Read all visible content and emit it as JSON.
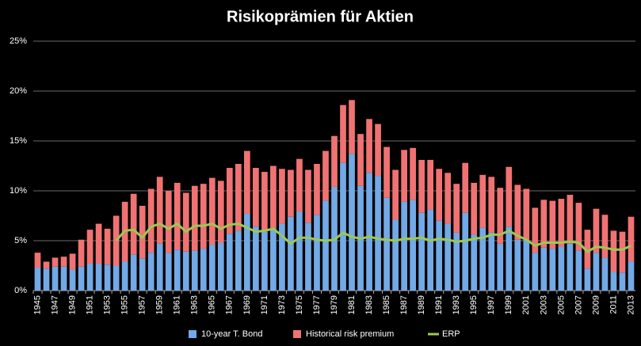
{
  "chart_data": {
    "type": "stacked_bar_line",
    "title": "Risikoprämien für Aktien",
    "categories": [
      "1945",
      null,
      "1947",
      null,
      "1949",
      null,
      "1951",
      null,
      "1953",
      null,
      "1955",
      null,
      "1957",
      null,
      "1959",
      null,
      "1961",
      null,
      "1963",
      null,
      "1965",
      null,
      "1967",
      null,
      "1969",
      null,
      "1971",
      null,
      "1973",
      null,
      "1975",
      null,
      "1977",
      null,
      "1979",
      null,
      "1981",
      null,
      "1983",
      null,
      "1985",
      null,
      "1987",
      null,
      "1989",
      null,
      "1991",
      null,
      "1993",
      null,
      "1995",
      null,
      "1997",
      null,
      "1999",
      null,
      "2001",
      null,
      "2003",
      null,
      "2005",
      null,
      "2007",
      null,
      "2009",
      null,
      "2011",
      null,
      "2013"
    ],
    "series": [
      {
        "name": "10-year T. Bond",
        "color": "#72a9e6",
        "kind": "bar",
        "values": [
          2.3,
          2.2,
          2.4,
          2.4,
          2.1,
          2.4,
          2.7,
          2.7,
          2.6,
          2.5,
          2.9,
          3.6,
          3.2,
          3.8,
          4.7,
          3.8,
          4.1,
          3.9,
          4.0,
          4.2,
          4.6,
          4.8,
          5.7,
          6.0,
          7.7,
          6.4,
          5.9,
          6.3,
          6.7,
          7.4,
          7.9,
          6.8,
          7.6,
          9.0,
          10.4,
          12.8,
          13.7,
          10.5,
          11.8,
          11.5,
          9.3,
          7.1,
          8.9,
          9.1,
          7.8,
          8.1,
          7.0,
          6.7,
          5.8,
          7.8,
          5.6,
          6.3,
          5.8,
          4.7,
          6.4,
          5.1,
          5.1,
          3.8,
          4.3,
          4.2,
          4.4,
          4.7,
          4.0,
          2.2,
          3.8,
          3.3,
          1.9,
          1.8,
          2.9
        ]
      },
      {
        "name": "Historical risk premium",
        "color": "#f07272",
        "kind": "bar",
        "values": [
          1.5,
          0.7,
          0.9,
          1.0,
          1.6,
          2.7,
          3.4,
          4.0,
          3.6,
          5.0,
          6.0,
          6.1,
          5.3,
          6.4,
          6.7,
          6.2,
          6.7,
          5.9,
          6.5,
          6.5,
          6.7,
          6.2,
          6.6,
          6.7,
          6.3,
          5.9,
          6.0,
          6.2,
          5.5,
          4.7,
          5.3,
          5.3,
          5.1,
          5.0,
          5.1,
          5.8,
          5.4,
          5.2,
          5.4,
          5.2,
          5.1,
          5.0,
          5.2,
          5.2,
          5.3,
          5.0,
          5.2,
          5.1,
          4.9,
          5.0,
          5.2,
          5.3,
          5.6,
          5.6,
          6.0,
          5.5,
          5.1,
          4.5,
          4.8,
          4.8,
          4.8,
          4.9,
          4.8,
          3.9,
          4.4,
          4.3,
          4.1,
          4.1,
          4.5
        ]
      },
      {
        "name": "ERP",
        "color": "#9cc854",
        "kind": "line",
        "values": [
          null,
          null,
          null,
          null,
          null,
          null,
          null,
          null,
          null,
          5.0,
          6.0,
          6.1,
          5.3,
          6.4,
          6.7,
          6.2,
          6.7,
          5.9,
          6.5,
          6.5,
          6.7,
          6.2,
          6.6,
          6.7,
          6.3,
          5.9,
          6.0,
          6.2,
          5.5,
          4.7,
          5.3,
          5.3,
          5.1,
          5.0,
          5.1,
          5.8,
          5.4,
          5.2,
          5.4,
          5.2,
          5.1,
          5.0,
          5.2,
          5.2,
          5.3,
          5.0,
          5.2,
          5.1,
          4.9,
          5.0,
          5.2,
          5.3,
          5.6,
          5.6,
          6.0,
          5.5,
          5.1,
          4.5,
          4.8,
          4.8,
          4.8,
          4.9,
          4.8,
          3.9,
          4.4,
          4.3,
          4.1,
          4.1,
          4.5
        ]
      }
    ],
    "ylim": [
      0,
      25
    ],
    "yticks": [
      {
        "value": 0,
        "label": "0%"
      },
      {
        "value": 5,
        "label": "5%"
      },
      {
        "value": 10,
        "label": "10%"
      },
      {
        "value": 15,
        "label": "15%"
      },
      {
        "value": 20,
        "label": "20%"
      },
      {
        "value": 25,
        "label": "25%"
      }
    ],
    "grid": true,
    "legend": "bottom"
  }
}
